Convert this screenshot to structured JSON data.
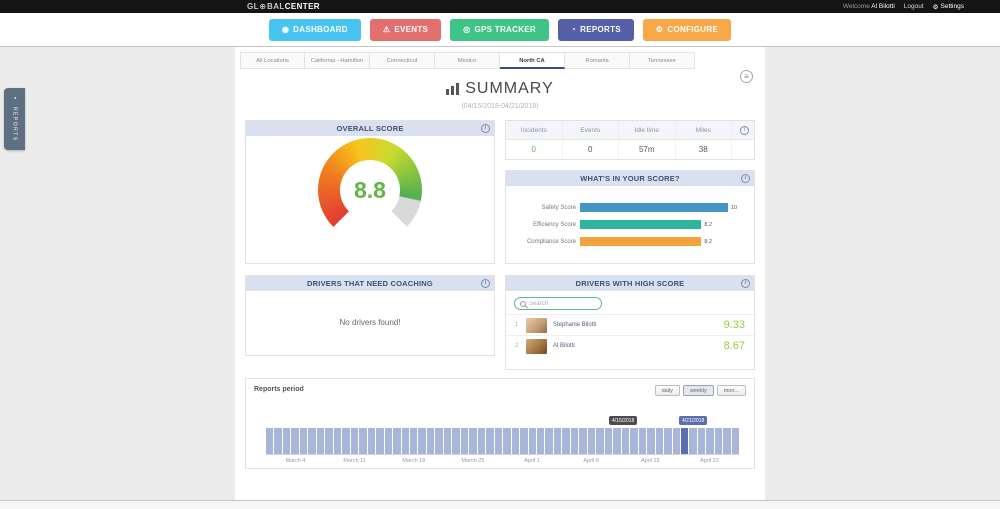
{
  "topbar": {
    "logo": {
      "prefix": "GL",
      "globe_icon": "⊕",
      "middle": "BAL",
      "suffix": "CENTER"
    },
    "welcome_label": "Welcome",
    "user_name": "Al Bilotti",
    "logout_label": "Logout",
    "settings_icon": "⚙",
    "settings_label": "Settings"
  },
  "nav": {
    "items": [
      {
        "label": "DASHBOARD",
        "icon": "◉",
        "color": "#47c5f0"
      },
      {
        "label": "EVENTS",
        "icon": "⚠",
        "color": "#e2706e"
      },
      {
        "label": "GPS TRACKER",
        "icon": "◎",
        "color": "#3fc487"
      },
      {
        "label": "REPORTS",
        "icon": "◔",
        "color": "#5560a8"
      },
      {
        "label": "CONFIGURE",
        "icon": "⚙",
        "color": "#f9a847"
      }
    ]
  },
  "tabs": {
    "items": [
      {
        "label": "All Locations",
        "active": false
      },
      {
        "label": "California - Hamilton",
        "active": false
      },
      {
        "label": "Connecticut",
        "active": false
      },
      {
        "label": "Mexico",
        "active": false
      },
      {
        "label": "North CA",
        "active": true
      },
      {
        "label": "Romania",
        "active": false
      },
      {
        "label": "Tennessee",
        "active": false
      }
    ]
  },
  "sidebar": {
    "icon": "◔",
    "label": "REPORTS"
  },
  "page": {
    "title": "SUMMARY",
    "date_range": "(04/15/2018-04/21/2018)",
    "menu_icon": "≡"
  },
  "panels": {
    "overall_score": {
      "title": "OVERALL SCORE",
      "info_icon": "i",
      "value": "8.8",
      "value_color": "#64b346"
    },
    "stats": {
      "info_icon": "i",
      "columns": [
        "Incidents",
        "Events",
        "Idle time",
        "Miles"
      ],
      "values": [
        {
          "text": "0",
          "color": "#5cb85c"
        },
        {
          "text": "0",
          "color": "#555555"
        },
        {
          "text": "57m",
          "color": "#555555"
        },
        {
          "text": "38",
          "color": "#555555"
        }
      ]
    },
    "score_breakdown": {
      "title": "WHAT'S IN YOUR SCORE?",
      "info_icon": "i",
      "rows": [
        {
          "label": "Safety Score",
          "value": "10",
          "pct": 100,
          "color": "#4596c6"
        },
        {
          "label": "Efficiency Score",
          "value": "8.2",
          "pct": 82,
          "color": "#2eb5a0"
        },
        {
          "label": "Compliance Score",
          "value": "8.2",
          "pct": 82,
          "color": "#f2a33c"
        }
      ]
    },
    "coaching": {
      "title": "DRIVERS THAT NEED COACHING",
      "info_icon": "i",
      "empty_message": "No drivers found!"
    },
    "high_score": {
      "title": "DRIVERS WITH HIGH SCORE",
      "info_icon": "i",
      "search_placeholder": "Search",
      "score_color": "#9bcb3c",
      "drivers": [
        {
          "rank": "1",
          "name": "Stephanie Bilotti",
          "score": "9.33"
        },
        {
          "rank": "2",
          "name": "Al Bilotti",
          "score": "8.67"
        }
      ]
    }
  },
  "reports_period": {
    "title": "Reports period",
    "buttons": [
      {
        "label": "daily",
        "active": false
      },
      {
        "label": "weekly",
        "active": true
      },
      {
        "label": "mon...",
        "active": false
      }
    ],
    "tooltips": [
      {
        "text": "4/15/2018",
        "style": "dark"
      },
      {
        "text": "4/21/2018",
        "style": "blue"
      }
    ],
    "chart_data": {
      "type": "bar",
      "x_labels": [
        "March 4",
        "March 11",
        "March 18",
        "March 25",
        "April 1",
        "April 8",
        "April 15",
        "April 22"
      ],
      "bar_count": 56,
      "uniform_value": 1,
      "highlight_index": 49,
      "bar_color": "#a9b6d9",
      "highlight_color": "#5b6fae"
    }
  }
}
